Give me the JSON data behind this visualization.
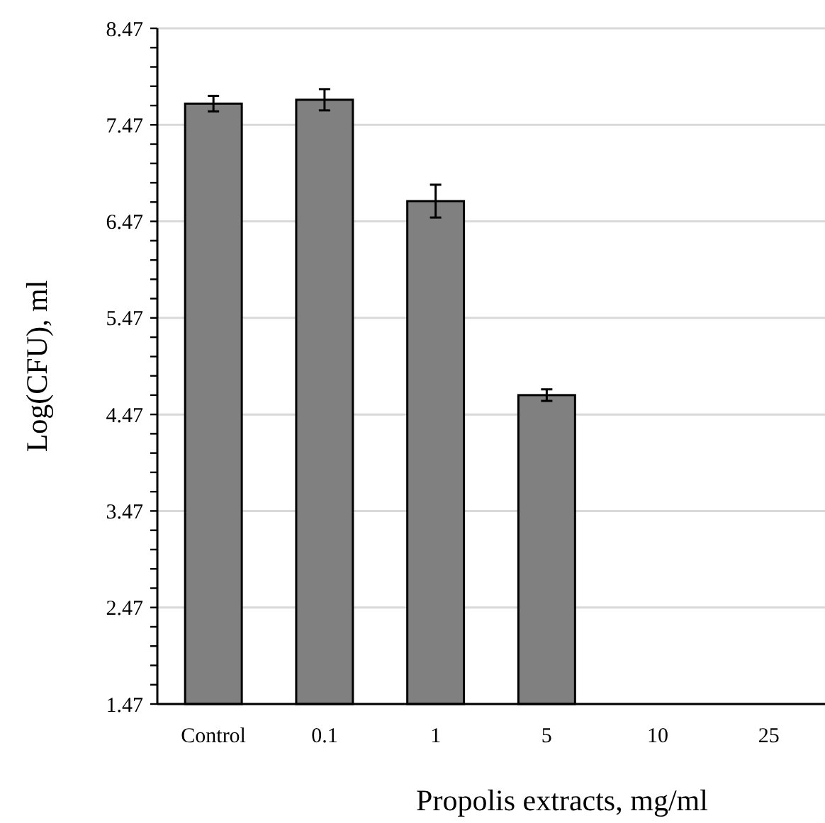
{
  "chart_data": {
    "type": "bar",
    "xlabel": "Propolis extracts, mg/ml",
    "ylabel": "Log(CFU), ml",
    "categories": [
      "Control",
      "0.1",
      "1",
      "5",
      "10",
      "25"
    ],
    "values": [
      7.69,
      7.73,
      6.68,
      4.67,
      null,
      null
    ],
    "errors": [
      0.08,
      0.11,
      0.17,
      0.06,
      null,
      null
    ],
    "color": "#808080",
    "ylim": [
      1.47,
      8.47
    ],
    "yticks": [
      1.47,
      {
        "value": 1.67,
        "label": null
      },
      {
        "value": 1.87,
        "label": null
      },
      {
        "value": 2.07,
        "label": null
      },
      {
        "value": 2.27,
        "label": null
      },
      2.47,
      {
        "value": 2.67,
        "label": null
      },
      {
        "value": 2.87,
        "label": null
      },
      {
        "value": 3.07,
        "label": null
      },
      {
        "value": 3.27,
        "label": null
      },
      3.47,
      {
        "value": 3.67,
        "label": null
      },
      {
        "value": 3.87,
        "label": null
      },
      {
        "value": 4.07,
        "label": null
      },
      {
        "value": 4.27,
        "label": null
      },
      4.47,
      {
        "value": 4.67,
        "label": null
      },
      {
        "value": 4.87,
        "label": null
      },
      {
        "value": 5.07,
        "label": null
      },
      {
        "value": 5.27,
        "label": null
      },
      5.47,
      {
        "value": 5.67,
        "label": null
      },
      {
        "value": 5.87,
        "label": null
      },
      {
        "value": 6.07,
        "label": null
      },
      {
        "value": 6.27,
        "label": null
      },
      6.47,
      {
        "value": 6.67,
        "label": null
      },
      {
        "value": 6.87,
        "label": null
      },
      {
        "value": 7.07,
        "label": null
      },
      {
        "value": 7.27,
        "label": null
      },
      7.47,
      {
        "value": 7.67,
        "label": null
      },
      {
        "value": 7.87,
        "label": null
      },
      {
        "value": 8.07,
        "label": null
      },
      {
        "value": 8.27,
        "label": null
      },
      8.47
    ],
    "grid": "y"
  }
}
